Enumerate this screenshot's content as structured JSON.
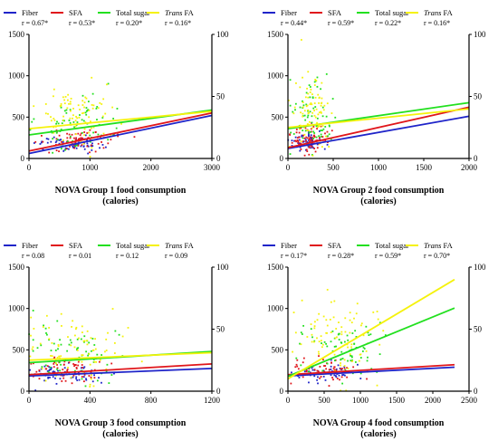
{
  "figure": {
    "colors": {
      "fiber": "#1f24c9",
      "sfa": "#e0161b",
      "sugar": "#22e01f",
      "trans": "#f5f20c",
      "axis": "#000000"
    }
  },
  "chart_data": [
    {
      "type": "scatter",
      "xlabel_line1": "NOVA Group 1 food consumption",
      "xlabel_line2": "(calories)",
      "xlim": [
        0,
        3000
      ],
      "xticks": [
        "0",
        "1000",
        "2000",
        "3000"
      ],
      "ylim_left": [
        0,
        1500
      ],
      "yticks_left": [
        "0",
        "500",
        "1000",
        "1500"
      ],
      "ylim_right": [
        0,
        100
      ],
      "yticks_right": [
        "0",
        "50",
        "100"
      ],
      "grid": false,
      "legend_position": "top",
      "series": [
        {
          "key": "fiber",
          "name": "Fiber",
          "r_label": "r = 0.67*",
          "axis": "left",
          "fit_line": [
            [
              0,
              60
            ],
            [
              3000,
              520
            ]
          ],
          "point_cloud": {
            "x_center": 700,
            "x_spread": 450,
            "y_center": 180,
            "y_spread": 80,
            "n": 60
          }
        },
        {
          "key": "sfa",
          "name": "SFA",
          "r_label": "r = 0.53*",
          "axis": "left",
          "fit_line": [
            [
              0,
              90
            ],
            [
              3000,
              550
            ]
          ],
          "point_cloud": {
            "x_center": 800,
            "x_spread": 500,
            "y_center": 220,
            "y_spread": 110,
            "n": 70
          }
        },
        {
          "key": "sugar",
          "name": "Total sugar",
          "r_label": "r = 0.20*",
          "axis": "right",
          "fit_line": [
            [
              0,
              19
            ],
            [
              3000,
              39
            ]
          ],
          "point_cloud": {
            "x_center": 800,
            "x_spread": 500,
            "y_center": 28,
            "y_spread": 20,
            "n": 70
          }
        },
        {
          "key": "trans",
          "name": "Trans FA",
          "name_italic_part": "Trans",
          "name_rest": " FA",
          "r_label": "r = 0.16*",
          "axis": "right",
          "fit_line": [
            [
              0,
              24
            ],
            [
              3000,
              38
            ]
          ],
          "point_cloud": {
            "x_center": 800,
            "x_spread": 500,
            "y_center": 33,
            "y_spread": 22,
            "n": 80
          }
        }
      ]
    },
    {
      "type": "scatter",
      "xlabel_line1": "NOVA Group 2 food consumption",
      "xlabel_line2": "(calories)",
      "xlim": [
        0,
        2000
      ],
      "xticks": [
        "0",
        "500",
        "1000",
        "1500",
        "2000"
      ],
      "ylim_left": [
        0,
        1500
      ],
      "yticks_left": [
        "0",
        "500",
        "1000",
        "1500"
      ],
      "ylim_right": [
        0,
        100
      ],
      "yticks_right": [
        "0",
        "50",
        "100"
      ],
      "grid": false,
      "legend_position": "top",
      "series": [
        {
          "key": "fiber",
          "name": "Fiber",
          "r_label": "r = 0.44*",
          "axis": "left",
          "fit_line": [
            [
              0,
              120
            ],
            [
              2000,
              510
            ]
          ],
          "point_cloud": {
            "x_center": 200,
            "x_spread": 150,
            "y_center": 200,
            "y_spread": 90,
            "n": 60
          }
        },
        {
          "key": "sfa",
          "name": "SFA",
          "r_label": "r = 0.59*",
          "axis": "left",
          "fit_line": [
            [
              0,
              130
            ],
            [
              2000,
              620
            ]
          ],
          "point_cloud": {
            "x_center": 220,
            "x_spread": 170,
            "y_center": 230,
            "y_spread": 120,
            "n": 70
          }
        },
        {
          "key": "sugar",
          "name": "Total sugar",
          "r_label": "r = 0.22*",
          "axis": "right",
          "fit_line": [
            [
              0,
              24
            ],
            [
              2000,
              45
            ]
          ],
          "point_cloud": {
            "x_center": 250,
            "x_spread": 200,
            "y_center": 35,
            "y_spread": 25,
            "n": 70
          }
        },
        {
          "key": "trans",
          "name": "Trans FA",
          "name_italic_part": "Trans",
          "name_rest": " FA",
          "r_label": "r = 0.16*",
          "axis": "right",
          "fit_line": [
            [
              0,
              25
            ],
            [
              2000,
              40
            ]
          ],
          "point_cloud": {
            "x_center": 250,
            "x_spread": 200,
            "y_center": 40,
            "y_spread": 28,
            "n": 80
          }
        }
      ]
    },
    {
      "type": "scatter",
      "xlabel_line1": "NOVA Group 3 food consumption",
      "xlabel_line2": "(calories)",
      "xlim": [
        0,
        1200
      ],
      "xticks": [
        "0",
        "400",
        "800",
        "1200"
      ],
      "ylim_left": [
        0,
        1500
      ],
      "yticks_left": [
        "0",
        "500",
        "1000",
        "1500"
      ],
      "ylim_right": [
        0,
        100
      ],
      "yticks_right": [
        "0",
        "50",
        "100"
      ],
      "grid": false,
      "legend_position": "top",
      "series": [
        {
          "key": "fiber",
          "name": "Fiber",
          "r_label": "r = 0.08",
          "axis": "left",
          "fit_line": [
            [
              0,
              185
            ],
            [
              1200,
              275
            ]
          ],
          "point_cloud": {
            "x_center": 250,
            "x_spread": 230,
            "y_center": 220,
            "y_spread": 110,
            "n": 60
          }
        },
        {
          "key": "sfa",
          "name": "SFA",
          "r_label": "r = 0.01",
          "axis": "left",
          "fit_line": [
            [
              0,
              200
            ],
            [
              1200,
              330
            ]
          ],
          "point_cloud": {
            "x_center": 250,
            "x_spread": 230,
            "y_center": 250,
            "y_spread": 130,
            "n": 60
          }
        },
        {
          "key": "sugar",
          "name": "Total sugar",
          "r_label": "r = 0.12",
          "axis": "right",
          "fit_line": [
            [
              0,
              23
            ],
            [
              1200,
              32
            ]
          ],
          "point_cloud": {
            "x_center": 280,
            "x_spread": 260,
            "y_center": 30,
            "y_spread": 22,
            "n": 70
          }
        },
        {
          "key": "trans",
          "name": "Trans FA",
          "name_italic_part": "Trans",
          "name_rest": " FA",
          "r_label": "r = 0.09",
          "axis": "right",
          "fit_line": [
            [
              0,
              25
            ],
            [
              1200,
              31
            ]
          ],
          "point_cloud": {
            "x_center": 280,
            "x_spread": 260,
            "y_center": 35,
            "y_spread": 25,
            "n": 80
          }
        }
      ]
    },
    {
      "type": "scatter",
      "xlabel_line1": "NOVA Group 4 food consumption",
      "xlabel_line2": "(calories)",
      "xlim": [
        0,
        2500
      ],
      "xticks": [
        "0",
        "500",
        "1000",
        "1500",
        "2000",
        "2500"
      ],
      "ylim_left": [
        0,
        1500
      ],
      "yticks_left": [
        "0",
        "500",
        "1000",
        "1500"
      ],
      "ylim_right": [
        0,
        100
      ],
      "yticks_right": [
        "0",
        "50",
        "100"
      ],
      "grid": false,
      "legend_position": "top",
      "series": [
        {
          "key": "fiber",
          "name": "Fiber",
          "r_label": "r = 0.17*",
          "axis": "left",
          "fit_line": [
            [
              0,
              185
            ],
            [
              2300,
              290
            ]
          ],
          "point_cloud": {
            "x_center": 500,
            "x_spread": 400,
            "y_center": 220,
            "y_spread": 90,
            "n": 60
          }
        },
        {
          "key": "sfa",
          "name": "SFA",
          "r_label": "r = 0.28*",
          "axis": "left",
          "fit_line": [
            [
              0,
              200
            ],
            [
              2300,
              320
            ]
          ],
          "point_cloud": {
            "x_center": 500,
            "x_spread": 400,
            "y_center": 240,
            "y_spread": 110,
            "n": 60
          }
        },
        {
          "key": "sugar",
          "name": "Total sugar",
          "r_label": "r = 0.59*",
          "axis": "right",
          "fit_line": [
            [
              0,
              12
            ],
            [
              2300,
              67
            ]
          ],
          "point_cloud": {
            "x_center": 700,
            "x_spread": 550,
            "y_center": 35,
            "y_spread": 22,
            "n": 70
          }
        },
        {
          "key": "trans",
          "name": "Trans FA",
          "name_italic_part": "Trans",
          "name_rest": " FA",
          "r_label": "r = 0.70*",
          "axis": "right",
          "fit_line": [
            [
              0,
              10
            ],
            [
              2300,
              90
            ]
          ],
          "point_cloud": {
            "x_center": 700,
            "x_spread": 550,
            "y_center": 42,
            "y_spread": 28,
            "n": 80
          }
        }
      ]
    }
  ]
}
